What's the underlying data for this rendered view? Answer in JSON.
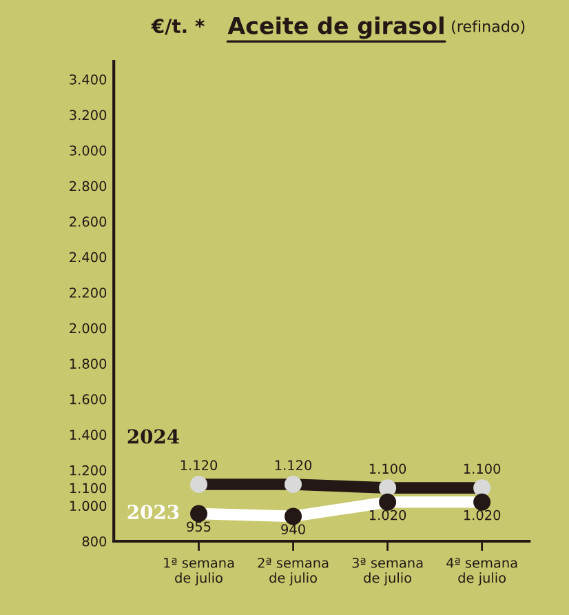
{
  "chart_data": {
    "type": "line",
    "title": "Aceite de girasol",
    "subtitle": "(refinado)",
    "ylabel": "€/t. *",
    "categories": [
      "1ª semana\nde julio",
      "2ª semana\nde julio",
      "3ª semana\nde julio",
      "4ª semana\nde julio"
    ],
    "series": [
      {
        "name": "2024",
        "color": "#231815",
        "values": [
          1120,
          1120,
          1100,
          1100
        ],
        "value_labels": [
          "1.120",
          "1.120",
          "1.100",
          "1.100"
        ]
      },
      {
        "name": "2023",
        "color": "#ffffff",
        "values": [
          955,
          940,
          1020,
          1020
        ],
        "value_labels": [
          "955",
          "940",
          "1.020",
          "1.020"
        ]
      }
    ],
    "ylim": [
      800,
      3500
    ],
    "yticks": [
      {
        "value": 800,
        "label": "800"
      },
      {
        "value": 1000,
        "label": "1.000"
      },
      {
        "value": 1100,
        "label": "1.100"
      },
      {
        "value": 1200,
        "label": "1.200"
      },
      {
        "value": 1400,
        "label": "1.400"
      },
      {
        "value": 1600,
        "label": "1.600"
      },
      {
        "value": 1800,
        "label": "1.800"
      },
      {
        "value": 2000,
        "label": "2.000"
      },
      {
        "value": 2200,
        "label": "2.200"
      },
      {
        "value": 2400,
        "label": "2.400"
      },
      {
        "value": 2600,
        "label": "2.600"
      },
      {
        "value": 2800,
        "label": "2.800"
      },
      {
        "value": 3000,
        "label": "3.000"
      },
      {
        "value": 3200,
        "label": "3.200"
      },
      {
        "value": 3400,
        "label": "3.400"
      }
    ],
    "grid": false,
    "legend": false,
    "marker": "circle",
    "line_style": "solid"
  }
}
